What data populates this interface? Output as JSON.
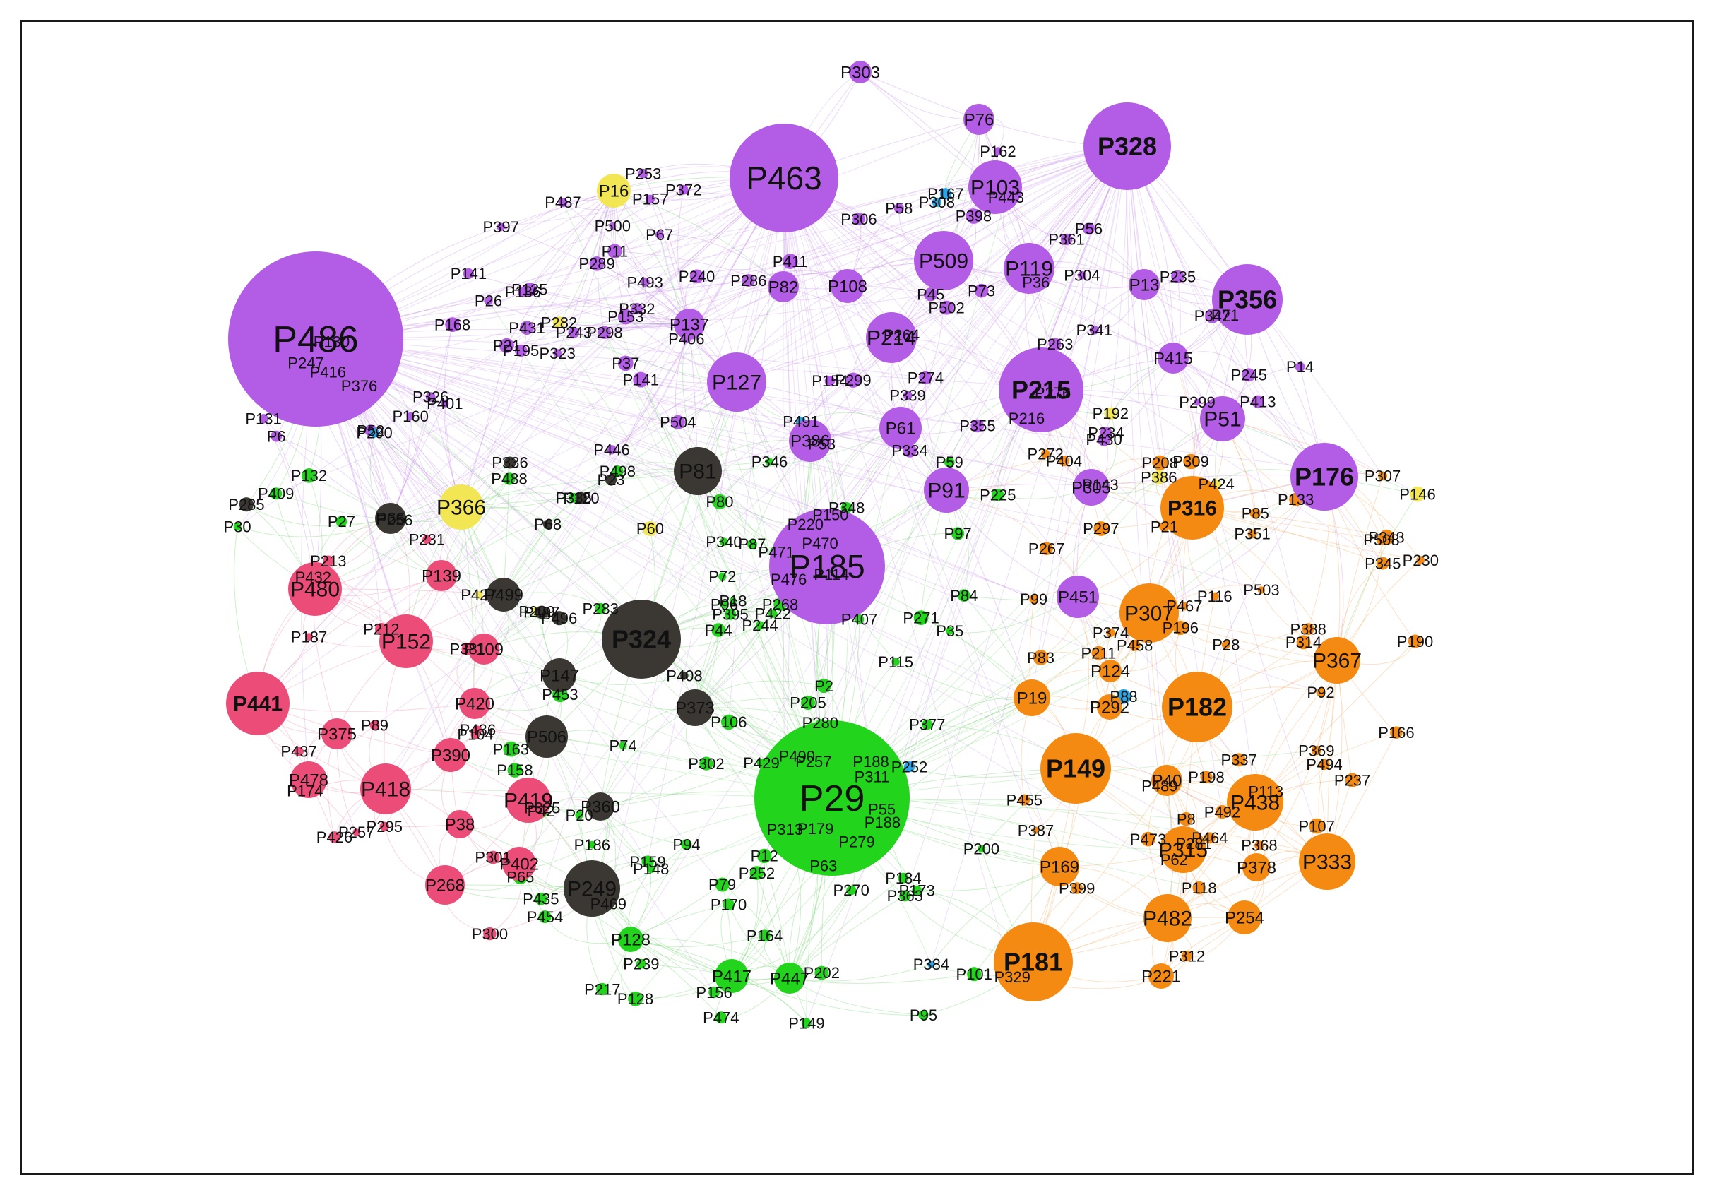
{
  "colors": {
    "purple": "#b35ce6",
    "green": "#22d41c",
    "pink": "#ec4d78",
    "dark": "#3b3733",
    "orange": "#f48a12",
    "yellow": "#f2e655",
    "blue": "#2aa6e8",
    "edge_purple": "#c78de8",
    "edge_green": "#6fd36a",
    "edge_pink": "#ee8aa6",
    "edge_orange": "#f3ad62",
    "frame": "#1a1a1a"
  },
  "network": {
    "hubs": [
      {
        "label": "P486",
        "group": "purple",
        "bold": false
      },
      {
        "label": "P29",
        "group": "green",
        "bold": false
      },
      {
        "label": "P463",
        "group": "purple",
        "bold": false
      },
      {
        "label": "P185",
        "group": "purple",
        "bold": false
      },
      {
        "label": "P324",
        "group": "dark",
        "bold": true
      },
      {
        "label": "P328",
        "group": "purple",
        "bold": true
      },
      {
        "label": "P215",
        "group": "purple",
        "bold": true
      },
      {
        "label": "P356",
        "group": "purple",
        "bold": true
      },
      {
        "label": "P176",
        "group": "purple",
        "bold": true
      },
      {
        "label": "P181",
        "group": "orange",
        "bold": true
      },
      {
        "label": "P149",
        "group": "orange",
        "bold": true
      },
      {
        "label": "P182",
        "group": "orange",
        "bold": true
      },
      {
        "label": "P316",
        "group": "orange",
        "bold": true
      },
      {
        "label": "P441",
        "group": "pink",
        "bold": true
      },
      {
        "label": "P480",
        "group": "pink",
        "bold": false
      },
      {
        "label": "P152",
        "group": "pink",
        "bold": false
      },
      {
        "label": "P418",
        "group": "pink",
        "bold": false
      },
      {
        "label": "P419",
        "group": "pink",
        "bold": false
      },
      {
        "label": "P307",
        "group": "orange",
        "bold": false
      },
      {
        "label": "P438",
        "group": "orange",
        "bold": false
      },
      {
        "label": "P333",
        "group": "orange",
        "bold": false
      },
      {
        "label": "P482",
        "group": "orange",
        "bold": false
      },
      {
        "label": "P315",
        "group": "orange",
        "bold": false
      },
      {
        "label": "P367",
        "group": "orange",
        "bold": false
      },
      {
        "label": "P169",
        "group": "orange",
        "bold": false
      },
      {
        "label": "P127",
        "group": "purple",
        "bold": false
      },
      {
        "label": "P509",
        "group": "purple",
        "bold": false
      },
      {
        "label": "P103",
        "group": "purple",
        "bold": false
      },
      {
        "label": "P119",
        "group": "purple",
        "bold": false
      },
      {
        "label": "P214",
        "group": "purple",
        "bold": false
      },
      {
        "label": "P91",
        "group": "purple",
        "bold": false
      },
      {
        "label": "P61",
        "group": "purple",
        "bold": false
      },
      {
        "label": "P51",
        "group": "purple",
        "bold": false
      },
      {
        "label": "P451",
        "group": "purple",
        "bold": false
      },
      {
        "label": "P386",
        "group": "purple",
        "bold": false
      },
      {
        "label": "P305",
        "group": "purple",
        "bold": false
      },
      {
        "label": "P249",
        "group": "dark",
        "bold": false
      },
      {
        "label": "P81",
        "group": "dark",
        "bold": false
      },
      {
        "label": "P366",
        "group": "yellow",
        "bold": false
      },
      {
        "label": "P506",
        "group": "dark",
        "bold": false
      },
      {
        "label": "P373",
        "group": "dark",
        "bold": false
      },
      {
        "label": "P147",
        "group": "dark",
        "bold": false
      },
      {
        "label": "P65",
        "group": "dark",
        "bold": false
      },
      {
        "label": "P499",
        "group": "dark",
        "bold": false
      },
      {
        "label": "P417",
        "group": "green",
        "bold": false
      },
      {
        "label": "P447",
        "group": "green",
        "bold": false
      },
      {
        "label": "P268",
        "group": "pink",
        "bold": false
      },
      {
        "label": "P402",
        "group": "pink",
        "bold": false
      },
      {
        "label": "P420",
        "group": "pink",
        "bold": false
      },
      {
        "label": "P478",
        "group": "pink",
        "bold": false
      },
      {
        "label": "P390",
        "group": "pink",
        "bold": false
      },
      {
        "label": "P375",
        "group": "pink",
        "bold": false
      },
      {
        "label": "P139",
        "group": "pink",
        "bold": false
      },
      {
        "label": "P109",
        "group": "pink",
        "bold": false
      },
      {
        "label": "P254",
        "group": "orange",
        "bold": false
      },
      {
        "label": "P19",
        "group": "orange",
        "bold": false
      },
      {
        "label": "P40",
        "group": "orange",
        "bold": false
      },
      {
        "label": "P378",
        "group": "orange",
        "bold": false
      },
      {
        "label": "P292",
        "group": "orange",
        "bold": false
      },
      {
        "label": "P13",
        "group": "purple",
        "bold": false
      },
      {
        "label": "P415",
        "group": "purple",
        "bold": false
      },
      {
        "label": "P108",
        "group": "purple",
        "bold": false
      },
      {
        "label": "P76",
        "group": "purple",
        "bold": false
      },
      {
        "label": "P82",
        "group": "purple",
        "bold": false
      },
      {
        "label": "P137",
        "group": "purple",
        "bold": false
      },
      {
        "label": "P38",
        "group": "pink",
        "bold": false
      },
      {
        "label": "P360",
        "group": "dark",
        "bold": false
      },
      {
        "label": "P128",
        "group": "green",
        "bold": false
      },
      {
        "label": "P221",
        "group": "orange",
        "bold": false
      },
      {
        "label": "P124",
        "group": "orange",
        "bold": false
      },
      {
        "label": "P16",
        "group": "yellow",
        "bold": false
      },
      {
        "label": "P303",
        "group": "purple",
        "bold": false
      }
    ],
    "small_labels": [
      "P141",
      "P11",
      "P372",
      "P339",
      "P101",
      "P489",
      "P12",
      "P436",
      "P455",
      "P351",
      "P437",
      "P409",
      "P113",
      "P63",
      "P424",
      "P62",
      "P252",
      "P212",
      "P220",
      "P213",
      "P297",
      "P471",
      "P295",
      "P162",
      "P52",
      "P346",
      "P270",
      "P216",
      "P268",
      "P56",
      "P276",
      "P27",
      "P397",
      "P335",
      "P406",
      "P106",
      "P240",
      "P148",
      "P192",
      "P408",
      "P58",
      "P173",
      "P107",
      "P55",
      "P202",
      "P170",
      "P67",
      "P348",
      "P381",
      "P336",
      "P217",
      "P257",
      "P163",
      "P28",
      "P430",
      "P345",
      "P234",
      "P21",
      "P150",
      "P361",
      "P272",
      "P14",
      "P235",
      "P329",
      "P188",
      "P186",
      "P469",
      "P458",
      "P431",
      "P89",
      "P8",
      "P44",
      "P274",
      "P309",
      "P332",
      "P432",
      "P2",
      "P427",
      "P343",
      "P398",
      "P135",
      "P65",
      "P96",
      "P312",
      "P166",
      "P508",
      "P384",
      "P263",
      "P257",
      "P290",
      "P280",
      "P156",
      "P97",
      "P422",
      "P157",
      "P209",
      "P94",
      "P35",
      "P30",
      "P95",
      "P21",
      "P243",
      "P282",
      "P71",
      "P283",
      "P73",
      "P85",
      "P36",
      "P267",
      "P79",
      "P205",
      "P407",
      "P404",
      "P184",
      "P286",
      "P253",
      "P53",
      "P395",
      "P443",
      "P340",
      "P116",
      "P42",
      "P476",
      "P87",
      "P83",
      "P416",
      "P494",
      "P239",
      "P498",
      "P196",
      "P311",
      "P304",
      "P334",
      "P473",
      "P446",
      "P245",
      "P190",
      "P429",
      "P300",
      "P188",
      "P104",
      "P149",
      "P464",
      "P470",
      "P230",
      "P153",
      "P146",
      "P281",
      "P37",
      "P26",
      "P435",
      "P158",
      "P411",
      "P323",
      "P487",
      "P308",
      "P160",
      "P231",
      "P285",
      "P492",
      "P264",
      "P20",
      "P143",
      "P132",
      "P74",
      "P118",
      "P301",
      "P130",
      "P497",
      "P502",
      "P342",
      "P500",
      "P503",
      "P68",
      "P59",
      "P387",
      "P363",
      "P493",
      "P326",
      "P313",
      "P399",
      "P60",
      "P88",
      "P467",
      "P376",
      "P225",
      "P314",
      "P491",
      "P355",
      "P289",
      "P72",
      "P99",
      "P114",
      "P337",
      "P341",
      "P369",
      "P368",
      "P271",
      "P496",
      "P426",
      "P490",
      "P92",
      "P131",
      "P154",
      "P504",
      "P252",
      "P128",
      "P302",
      "P307",
      "P298",
      "P388",
      "P174",
      "P115",
      "P306",
      "P244",
      "P377",
      "P454",
      "P23",
      "P237",
      "P84",
      "P453",
      "P133",
      "P167",
      "P164",
      "P474",
      "P168",
      "P159",
      "P247",
      "P200",
      "P299",
      "P80",
      "P198",
      "P325",
      "P374",
      "P195",
      "P187",
      "P136",
      "P413",
      "P211",
      "P18",
      "P6",
      "P279",
      "P256",
      "P401",
      "P208",
      "P120",
      "P488",
      "P45",
      "P179",
      "P299",
      "P386",
      "P141"
    ]
  }
}
